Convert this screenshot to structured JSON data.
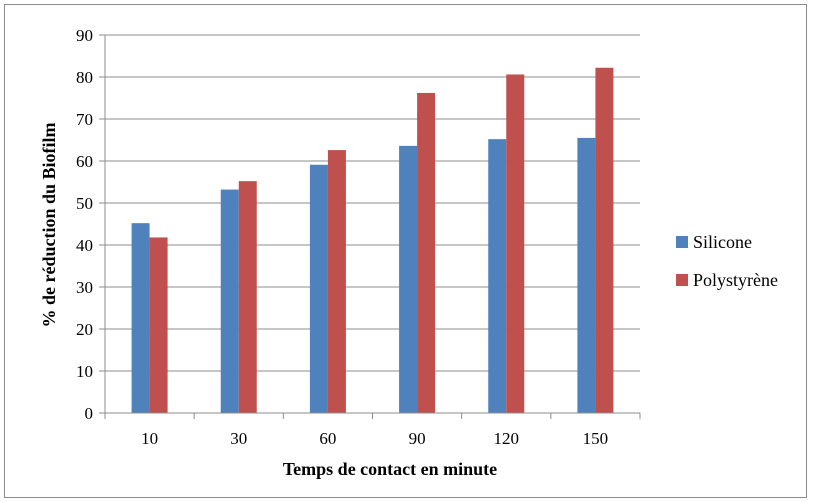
{
  "chart_data": {
    "type": "bar",
    "categories": [
      "10",
      "30",
      "60",
      "90",
      "120",
      "150"
    ],
    "series": [
      {
        "name": "Silicone",
        "values": [
          45.2,
          53.2,
          59.1,
          63.6,
          65.2,
          65.5
        ],
        "color": "#4f81bd"
      },
      {
        "name": "Polystyrène",
        "values": [
          41.8,
          55.2,
          62.6,
          76.2,
          80.6,
          82.2
        ],
        "color": "#c0504d"
      }
    ],
    "title": "",
    "xlabel": "Temps  de contact en minute",
    "ylabel": "% de réduction du Biofilm",
    "ylim": [
      0,
      90
    ],
    "yticks": [
      0,
      10,
      20,
      30,
      40,
      50,
      60,
      70,
      80,
      90
    ],
    "grid": true,
    "legend_position": "right"
  }
}
